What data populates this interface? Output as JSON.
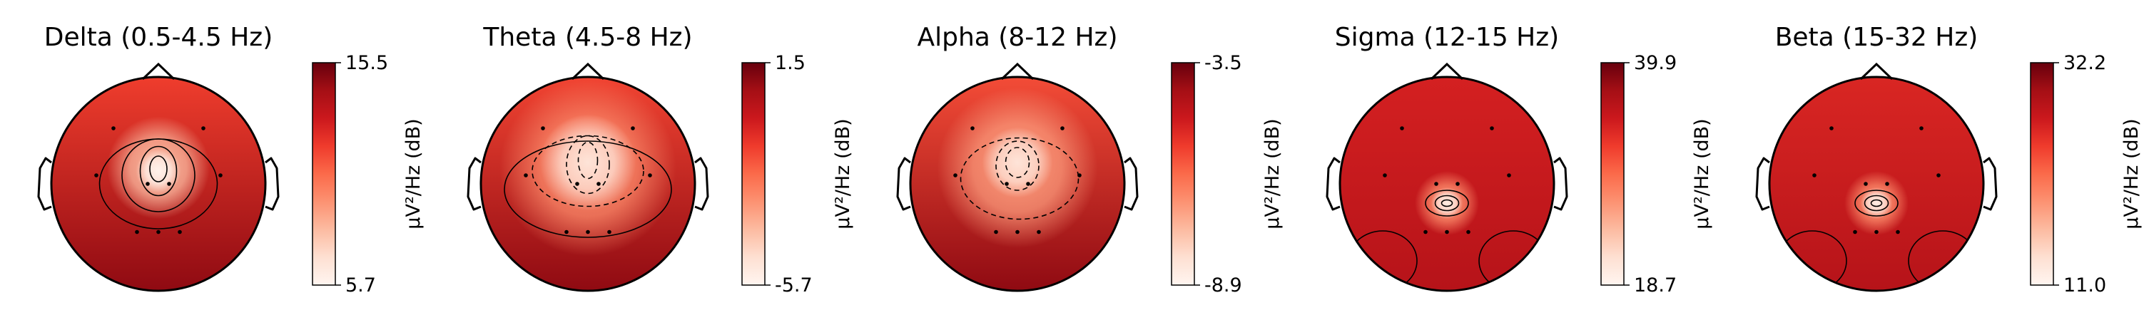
{
  "chart_data": {
    "type": "heatmap",
    "subtype": "eeg-topomap",
    "colormap": "Reds",
    "colorbar_unit": "µV²/Hz (dB)",
    "panels": [
      {
        "title": "Delta (0.5-4.5 Hz)",
        "vmin": 5.7,
        "vmax": 15.5,
        "vmin_label": "5.7",
        "vmax_label": "15.5",
        "hotspots": [
          {
            "cx": 0.0,
            "cy": -0.12,
            "r": 0.14,
            "v": 0.02
          },
          {
            "cx": 0.0,
            "cy": -0.15,
            "r": 0.32,
            "v": 0.25
          }
        ],
        "base_top": 0.62,
        "base_bottom": 0.92,
        "contours": [
          {
            "cx": 0.0,
            "cy": -0.14,
            "rx": 0.08,
            "ry": 0.12,
            "dash": false
          },
          {
            "cx": 0.0,
            "cy": -0.12,
            "rx": 0.17,
            "ry": 0.23,
            "dash": false
          },
          {
            "cx": 0.0,
            "cy": -0.08,
            "rx": 0.34,
            "ry": 0.34,
            "dash": false
          },
          {
            "cx": 0.0,
            "cy": 0.0,
            "rx": 0.55,
            "ry": 0.42,
            "dash": false
          }
        ]
      },
      {
        "title": "Theta (4.5-8 Hz)",
        "vmin": -5.7,
        "vmax": 1.5,
        "vmin_label": "-5.7",
        "vmax_label": "1.5",
        "hotspots": [
          {
            "cx": 0.0,
            "cy": -0.2,
            "r": 0.3,
            "v": 0.1
          },
          {
            "cx": 0.0,
            "cy": -0.15,
            "r": 0.55,
            "v": 0.4
          }
        ],
        "base_top": 0.6,
        "base_bottom": 0.92,
        "contours": [
          {
            "cx": 0.0,
            "cy": -0.22,
            "rx": 0.09,
            "ry": 0.17,
            "dash": true
          },
          {
            "cx": 0.0,
            "cy": -0.18,
            "rx": 0.2,
            "ry": 0.27,
            "dash": true
          },
          {
            "cx": 0.0,
            "cy": -0.12,
            "rx": 0.52,
            "ry": 0.33,
            "dash": true
          },
          {
            "cx": 0.0,
            "cy": 0.05,
            "rx": 0.78,
            "ry": 0.45,
            "dash": false
          }
        ]
      },
      {
        "title": "Alpha (8-12 Hz)",
        "vmin": -8.9,
        "vmax": -3.5,
        "vmin_label": "-8.9",
        "vmax_label": "-3.5",
        "hotspots": [
          {
            "cx": 0.0,
            "cy": -0.2,
            "r": 0.22,
            "v": 0.1
          },
          {
            "cx": 0.0,
            "cy": -0.15,
            "r": 0.5,
            "v": 0.35
          }
        ],
        "base_top": 0.58,
        "base_bottom": 0.92,
        "contours": [
          {
            "cx": 0.0,
            "cy": -0.2,
            "rx": 0.11,
            "ry": 0.14,
            "dash": true
          },
          {
            "cx": 0.0,
            "cy": -0.17,
            "rx": 0.2,
            "ry": 0.23,
            "dash": true
          },
          {
            "cx": 0.02,
            "cy": -0.05,
            "rx": 0.55,
            "ry": 0.38,
            "dash": true
          }
        ]
      },
      {
        "title": "Sigma (12-15 Hz)",
        "vmin": 18.7,
        "vmax": 39.9,
        "vmin_label": "18.7",
        "vmax_label": "39.9",
        "hotspots": [
          {
            "cx": 0.0,
            "cy": 0.18,
            "r": 0.1,
            "v": 0.05
          },
          {
            "cx": 0.0,
            "cy": 0.18,
            "r": 0.2,
            "v": 0.4
          }
        ],
        "base_top": 0.72,
        "base_bottom": 0.82,
        "contours": [
          {
            "cx": 0.0,
            "cy": 0.18,
            "rx": 0.05,
            "ry": 0.03,
            "dash": false
          },
          {
            "cx": 0.0,
            "cy": 0.18,
            "rx": 0.11,
            "ry": 0.07,
            "dash": false
          },
          {
            "cx": 0.0,
            "cy": 0.18,
            "rx": 0.2,
            "ry": 0.12,
            "dash": false
          },
          {
            "cx": -0.6,
            "cy": 0.72,
            "rx": 0.32,
            "ry": 0.28,
            "dash": false
          },
          {
            "cx": 0.62,
            "cy": 0.72,
            "rx": 0.32,
            "ry": 0.28,
            "dash": false
          }
        ]
      },
      {
        "title": "Beta (15-32 Hz)",
        "vmin": 11.0,
        "vmax": 32.2,
        "vmin_label": "11.0",
        "vmax_label": "32.2",
        "hotspots": [
          {
            "cx": 0.0,
            "cy": 0.18,
            "r": 0.1,
            "v": 0.05
          },
          {
            "cx": 0.0,
            "cy": 0.18,
            "r": 0.2,
            "v": 0.4
          }
        ],
        "base_top": 0.7,
        "base_bottom": 0.82,
        "contours": [
          {
            "cx": 0.0,
            "cy": 0.18,
            "rx": 0.05,
            "ry": 0.03,
            "dash": false
          },
          {
            "cx": 0.0,
            "cy": 0.18,
            "rx": 0.11,
            "ry": 0.07,
            "dash": false
          },
          {
            "cx": 0.0,
            "cy": 0.18,
            "rx": 0.2,
            "ry": 0.12,
            "dash": false
          },
          {
            "cx": -0.6,
            "cy": 0.72,
            "rx": 0.32,
            "ry": 0.28,
            "dash": false
          },
          {
            "cx": 0.62,
            "cy": 0.72,
            "rx": 0.32,
            "ry": 0.28,
            "dash": false
          }
        ]
      }
    ],
    "sensors": [
      [
        -0.42,
        -0.52
      ],
      [
        0.42,
        -0.52
      ],
      [
        -0.58,
        -0.08
      ],
      [
        0.58,
        -0.08
      ],
      [
        -0.1,
        0.0
      ],
      [
        0.1,
        0.0
      ],
      [
        -0.2,
        0.45
      ],
      [
        0.0,
        0.45
      ],
      [
        0.2,
        0.45
      ]
    ]
  },
  "colors": {
    "cmap_low": "#fff5f0",
    "cmap_high": "#67000d",
    "outline": "#000000"
  }
}
